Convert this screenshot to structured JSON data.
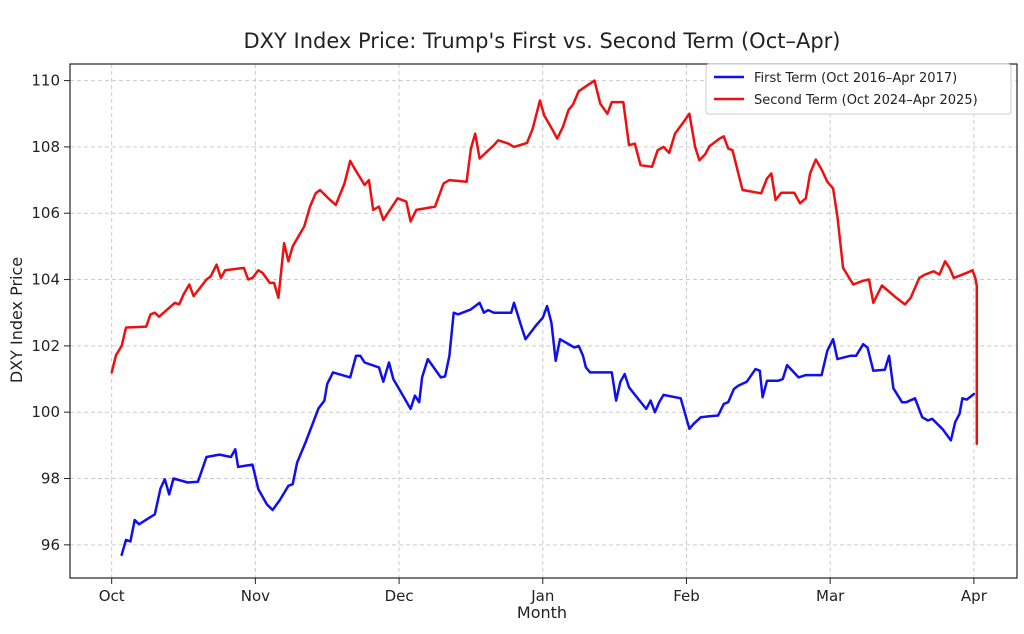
{
  "chart_data": {
    "type": "line",
    "title": "DXY Index Price: Trump's First vs. Second Term (Oct–Apr)",
    "xlabel": "Month",
    "ylabel": "DXY Index Price",
    "x_ticks": [
      "Oct",
      "Nov",
      "Dec",
      "Jan",
      "Feb",
      "Mar",
      "Apr"
    ],
    "y_ticks": [
      96,
      98,
      100,
      102,
      104,
      106,
      108,
      110
    ],
    "ylim": [
      95.0,
      110.5
    ],
    "xlim": [
      -0.29,
      6.3
    ],
    "grid": true,
    "legend_position": "top-right",
    "series": [
      {
        "name": "First Term (Oct 2016–Apr 2017)",
        "color": "#1010ee",
        "points": [
          [
            0.07,
            95.7
          ],
          [
            0.1,
            96.15
          ],
          [
            0.13,
            96.1
          ],
          [
            0.16,
            96.75
          ],
          [
            0.19,
            96.62
          ],
          [
            0.3,
            96.92
          ],
          [
            0.34,
            97.7
          ],
          [
            0.37,
            97.98
          ],
          [
            0.4,
            97.52
          ],
          [
            0.43,
            98.0
          ],
          [
            0.53,
            97.88
          ],
          [
            0.6,
            97.9
          ],
          [
            0.66,
            98.65
          ],
          [
            0.75,
            98.72
          ],
          [
            0.83,
            98.65
          ],
          [
            0.86,
            98.88
          ],
          [
            0.88,
            98.35
          ],
          [
            0.98,
            98.42
          ],
          [
            1.02,
            97.68
          ],
          [
            1.08,
            97.22
          ],
          [
            1.12,
            97.05
          ],
          [
            1.17,
            97.35
          ],
          [
            1.23,
            97.78
          ],
          [
            1.26,
            97.83
          ],
          [
            1.29,
            98.48
          ],
          [
            1.35,
            99.1
          ],
          [
            1.44,
            100.12
          ],
          [
            1.48,
            100.35
          ],
          [
            1.5,
            100.85
          ],
          [
            1.54,
            101.2
          ],
          [
            1.66,
            101.05
          ],
          [
            1.7,
            101.7
          ],
          [
            1.73,
            101.7
          ],
          [
            1.76,
            101.5
          ],
          [
            1.86,
            101.35
          ],
          [
            1.89,
            100.92
          ],
          [
            1.93,
            101.5
          ],
          [
            1.96,
            101.0
          ],
          [
            2.02,
            100.55
          ],
          [
            2.08,
            100.1
          ],
          [
            2.11,
            100.5
          ],
          [
            2.14,
            100.3
          ],
          [
            2.16,
            101.05
          ],
          [
            2.2,
            101.6
          ],
          [
            2.29,
            101.05
          ],
          [
            2.32,
            101.08
          ],
          [
            2.35,
            101.7
          ],
          [
            2.38,
            103.0
          ],
          [
            2.41,
            102.95
          ],
          [
            2.5,
            103.1
          ],
          [
            2.56,
            103.3
          ],
          [
            2.59,
            103.0
          ],
          [
            2.62,
            103.08
          ],
          [
            2.66,
            103.0
          ],
          [
            2.78,
            103.0
          ],
          [
            2.8,
            103.3
          ],
          [
            2.85,
            102.6
          ],
          [
            2.88,
            102.2
          ],
          [
            2.95,
            102.6
          ],
          [
            3.0,
            102.85
          ],
          [
            3.03,
            103.2
          ],
          [
            3.06,
            102.7
          ],
          [
            3.09,
            101.55
          ],
          [
            3.12,
            102.2
          ],
          [
            3.22,
            101.95
          ],
          [
            3.25,
            102.0
          ],
          [
            3.28,
            101.7
          ],
          [
            3.3,
            101.35
          ],
          [
            3.33,
            101.2
          ],
          [
            3.48,
            101.2
          ],
          [
            3.51,
            100.35
          ],
          [
            3.54,
            100.92
          ],
          [
            3.57,
            101.15
          ],
          [
            3.6,
            100.75
          ],
          [
            3.72,
            100.1
          ],
          [
            3.75,
            100.35
          ],
          [
            3.78,
            100.0
          ],
          [
            3.81,
            100.3
          ],
          [
            3.84,
            100.52
          ],
          [
            3.96,
            100.42
          ],
          [
            4.02,
            99.5
          ],
          [
            4.05,
            99.65
          ],
          [
            4.1,
            99.85
          ],
          [
            4.16,
            99.88
          ],
          [
            4.22,
            99.9
          ],
          [
            4.26,
            100.25
          ],
          [
            4.29,
            100.3
          ],
          [
            4.33,
            100.7
          ],
          [
            4.36,
            100.8
          ],
          [
            4.42,
            100.92
          ],
          [
            4.48,
            101.3
          ],
          [
            4.51,
            101.25
          ],
          [
            4.53,
            100.45
          ],
          [
            4.56,
            100.95
          ],
          [
            4.64,
            100.95
          ],
          [
            4.67,
            101.0
          ],
          [
            4.7,
            101.42
          ],
          [
            4.78,
            101.05
          ],
          [
            4.83,
            101.12
          ],
          [
            4.94,
            101.12
          ],
          [
            4.98,
            101.85
          ],
          [
            5.02,
            102.2
          ],
          [
            5.05,
            101.6
          ],
          [
            5.14,
            101.7
          ],
          [
            5.18,
            101.7
          ],
          [
            5.23,
            102.05
          ],
          [
            5.26,
            101.95
          ],
          [
            5.3,
            101.25
          ],
          [
            5.38,
            101.28
          ],
          [
            5.41,
            101.7
          ],
          [
            5.44,
            100.72
          ],
          [
            5.5,
            100.3
          ],
          [
            5.53,
            100.3
          ],
          [
            5.59,
            100.42
          ],
          [
            5.64,
            99.85
          ],
          [
            5.68,
            99.75
          ],
          [
            5.71,
            99.8
          ],
          [
            5.78,
            99.5
          ],
          [
            5.84,
            99.15
          ],
          [
            5.87,
            99.7
          ],
          [
            5.9,
            99.95
          ],
          [
            5.92,
            100.42
          ],
          [
            5.95,
            100.38
          ],
          [
            6.0,
            100.55
          ]
        ]
      },
      {
        "name": "Second Term (Oct 2024–Apr 2025)",
        "color": "#ee1010",
        "points": [
          [
            0.0,
            101.2
          ],
          [
            0.03,
            101.72
          ],
          [
            0.07,
            102.0
          ],
          [
            0.1,
            102.55
          ],
          [
            0.24,
            102.58
          ],
          [
            0.27,
            102.95
          ],
          [
            0.3,
            103.0
          ],
          [
            0.33,
            102.88
          ],
          [
            0.44,
            103.3
          ],
          [
            0.47,
            103.25
          ],
          [
            0.5,
            103.55
          ],
          [
            0.54,
            103.85
          ],
          [
            0.57,
            103.5
          ],
          [
            0.66,
            104.0
          ],
          [
            0.69,
            104.1
          ],
          [
            0.73,
            104.45
          ],
          [
            0.76,
            104.05
          ],
          [
            0.79,
            104.28
          ],
          [
            0.92,
            104.35
          ],
          [
            0.95,
            104.0
          ],
          [
            0.98,
            104.05
          ],
          [
            1.02,
            104.28
          ],
          [
            1.05,
            104.2
          ],
          [
            1.1,
            103.9
          ],
          [
            1.13,
            103.9
          ],
          [
            1.16,
            103.45
          ],
          [
            1.2,
            105.1
          ],
          [
            1.23,
            104.55
          ],
          [
            1.26,
            105.0
          ],
          [
            1.34,
            105.6
          ],
          [
            1.38,
            106.2
          ],
          [
            1.42,
            106.6
          ],
          [
            1.45,
            106.7
          ],
          [
            1.52,
            106.4
          ],
          [
            1.56,
            106.25
          ],
          [
            1.62,
            106.9
          ],
          [
            1.66,
            107.58
          ],
          [
            1.69,
            107.35
          ],
          [
            1.76,
            106.85
          ],
          [
            1.79,
            107.0
          ],
          [
            1.82,
            106.1
          ],
          [
            1.86,
            106.2
          ],
          [
            1.89,
            105.8
          ],
          [
            1.99,
            106.45
          ],
          [
            2.05,
            106.35
          ],
          [
            2.08,
            105.75
          ],
          [
            2.12,
            106.1
          ],
          [
            2.25,
            106.2
          ],
          [
            2.31,
            106.9
          ],
          [
            2.35,
            107.0
          ],
          [
            2.47,
            106.95
          ],
          [
            2.5,
            107.95
          ],
          [
            2.53,
            108.4
          ],
          [
            2.56,
            107.65
          ],
          [
            2.66,
            108.05
          ],
          [
            2.69,
            108.2
          ],
          [
            2.76,
            108.1
          ],
          [
            2.8,
            108.0
          ],
          [
            2.89,
            108.12
          ],
          [
            2.93,
            108.55
          ],
          [
            2.98,
            109.4
          ],
          [
            3.01,
            108.95
          ],
          [
            3.07,
            108.5
          ],
          [
            3.1,
            108.25
          ],
          [
            3.14,
            108.6
          ],
          [
            3.18,
            109.12
          ],
          [
            3.21,
            109.28
          ],
          [
            3.25,
            109.68
          ],
          [
            3.36,
            110.0
          ],
          [
            3.4,
            109.3
          ],
          [
            3.45,
            109.0
          ],
          [
            3.48,
            109.35
          ],
          [
            3.56,
            109.35
          ],
          [
            3.6,
            108.05
          ],
          [
            3.64,
            108.1
          ],
          [
            3.68,
            107.45
          ],
          [
            3.76,
            107.4
          ],
          [
            3.8,
            107.9
          ],
          [
            3.84,
            108.0
          ],
          [
            3.88,
            107.82
          ],
          [
            3.92,
            108.4
          ],
          [
            3.98,
            108.75
          ],
          [
            4.02,
            109.0
          ],
          [
            4.06,
            108.0
          ],
          [
            4.09,
            107.6
          ],
          [
            4.13,
            107.78
          ],
          [
            4.16,
            108.02
          ],
          [
            4.23,
            108.25
          ],
          [
            4.26,
            108.32
          ],
          [
            4.29,
            107.95
          ],
          [
            4.32,
            107.9
          ],
          [
            4.39,
            106.7
          ],
          [
            4.52,
            106.6
          ],
          [
            4.56,
            107.05
          ],
          [
            4.59,
            107.2
          ],
          [
            4.62,
            106.4
          ],
          [
            4.66,
            106.62
          ],
          [
            4.75,
            106.62
          ],
          [
            4.79,
            106.3
          ],
          [
            4.83,
            106.45
          ],
          [
            4.86,
            107.2
          ],
          [
            4.9,
            107.62
          ],
          [
            4.94,
            107.32
          ],
          [
            4.98,
            106.95
          ],
          [
            5.02,
            106.75
          ],
          [
            5.05,
            105.9
          ],
          [
            5.09,
            104.35
          ],
          [
            5.16,
            103.85
          ],
          [
            5.22,
            103.95
          ],
          [
            5.27,
            104.0
          ],
          [
            5.3,
            103.3
          ],
          [
            5.36,
            103.82
          ],
          [
            5.46,
            103.45
          ],
          [
            5.52,
            103.25
          ],
          [
            5.56,
            103.45
          ],
          [
            5.62,
            104.05
          ],
          [
            5.66,
            104.15
          ],
          [
            5.72,
            104.25
          ],
          [
            5.76,
            104.15
          ],
          [
            5.8,
            104.55
          ],
          [
            5.83,
            104.35
          ],
          [
            5.86,
            104.05
          ],
          [
            5.96,
            104.22
          ],
          [
            5.99,
            104.28
          ],
          [
            6.01,
            104.05
          ],
          [
            6.02,
            103.8
          ],
          [
            6.02,
            99.05
          ]
        ]
      }
    ]
  }
}
